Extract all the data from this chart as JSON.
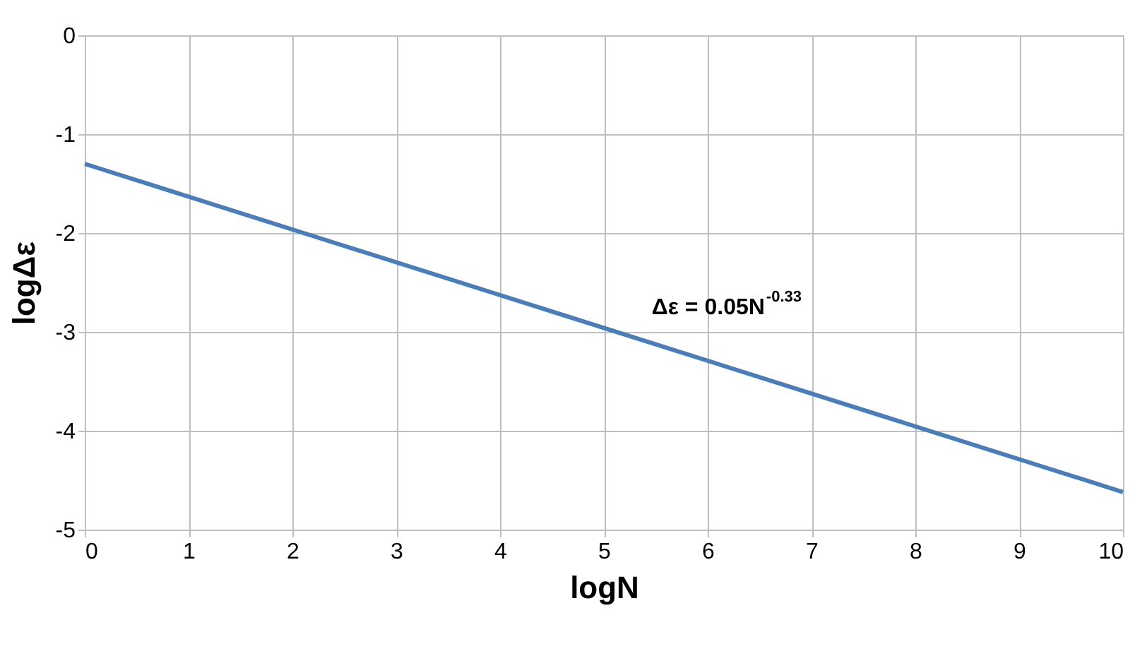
{
  "chart_data": {
    "type": "line",
    "xlabel": "logN",
    "ylabel": "logΔε",
    "x": [
      0,
      10
    ],
    "series": [
      {
        "color": "#4a7ebb",
        "values": [
          -1.3,
          -4.62
        ]
      }
    ],
    "xlim": [
      0,
      10
    ],
    "xticks": [
      0,
      1,
      2,
      3,
      4,
      5,
      6,
      7,
      8,
      9,
      10
    ],
    "ylim": [
      -5,
      0
    ],
    "yticks": [
      -5,
      -4,
      -3,
      -2,
      -1,
      0
    ],
    "grid": true,
    "marker": "none",
    "line_style": "solid",
    "annotations": [
      "Δε = 0.05N$^{-0.33}$"
    ]
  }
}
